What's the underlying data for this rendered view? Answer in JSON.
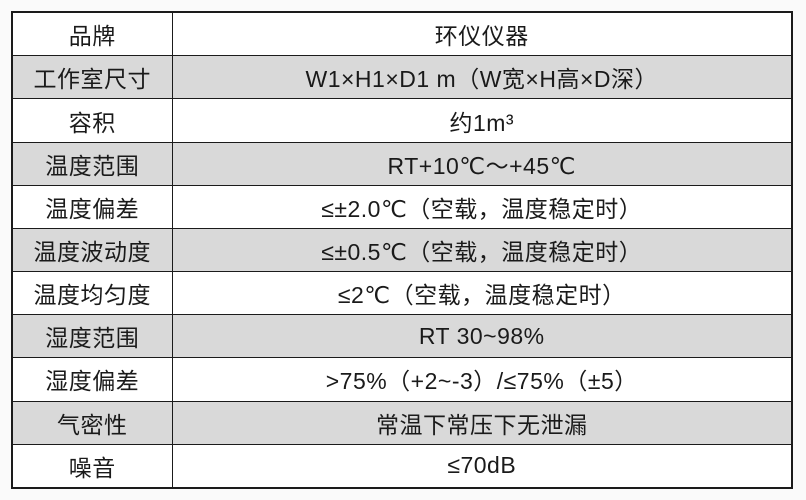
{
  "page": {
    "background_color": "#fafafa",
    "border_color": "#1b1b1b",
    "shaded_row_color": "#d9d9d9",
    "plain_row_color": "#ffffff",
    "text_color": "#1a1a1a"
  },
  "table": {
    "columns": [
      "parameter",
      "value"
    ],
    "rows": [
      {
        "label": "品牌",
        "value": "环仪仪器",
        "shaded": false
      },
      {
        "label": "工作室尺寸",
        "value": "W1×H1×D1 m（W宽×H高×D深）",
        "shaded": true
      },
      {
        "label": "容积",
        "value": "约1m³",
        "shaded": false
      },
      {
        "label": "温度范围",
        "value": "RT+10℃～+45℃",
        "shaded": true
      },
      {
        "label": "温度偏差",
        "value": "≤±2.0℃（空载，温度稳定时）",
        "shaded": false
      },
      {
        "label": "温度波动度",
        "value": "≤±0.5℃（空载，温度稳定时）",
        "shaded": true
      },
      {
        "label": "温度均匀度",
        "value": "≤2℃（空载，温度稳定时）",
        "shaded": false
      },
      {
        "label": "湿度范围",
        "value": "RT 30~98%",
        "shaded": true
      },
      {
        "label": "湿度偏差",
        "value": ">75%（+2~-3）/≤75%（±5）",
        "shaded": false
      },
      {
        "label": "气密性",
        "value": "常温下常压下无泄漏",
        "shaded": true
      },
      {
        "label": "噪音",
        "value": "≤70dB",
        "shaded": false
      }
    ]
  }
}
